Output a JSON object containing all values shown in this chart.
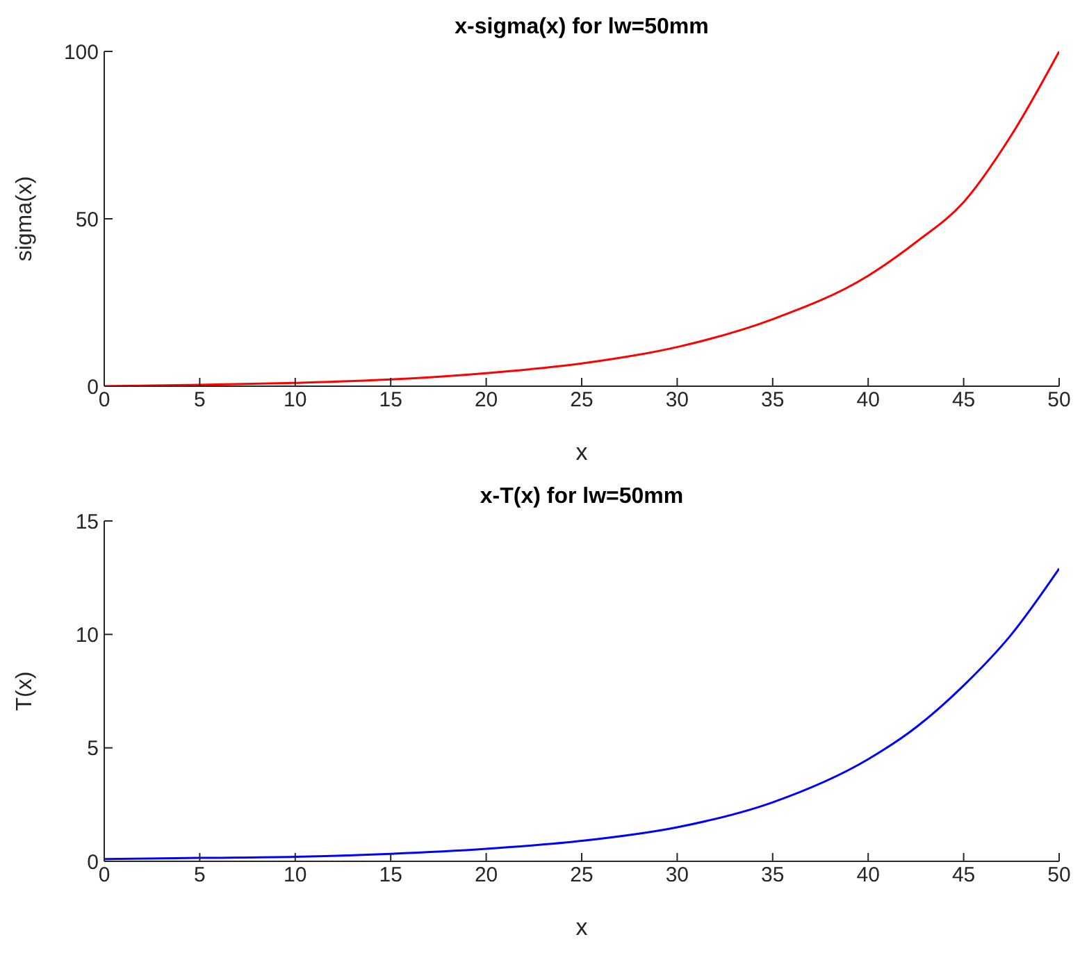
{
  "chart_data": [
    {
      "type": "line",
      "title": "x-sigma(x) for lw=50mm",
      "xlabel": "x",
      "ylabel": "sigma(x)",
      "x": [
        0,
        5,
        10,
        15,
        20,
        25,
        30,
        35,
        40,
        42.5,
        45,
        47.5,
        50
      ],
      "series": [
        {
          "color": "#ff0000",
          "values": [
            0,
            0.4,
            1,
            2,
            3.9,
            6.8,
            11.7,
            20,
            33,
            43,
            55,
            75,
            100
          ]
        }
      ],
      "xlim": [
        0,
        50
      ],
      "ylim": [
        0,
        100
      ],
      "xticks": [
        0,
        5,
        10,
        15,
        20,
        25,
        30,
        35,
        40,
        45,
        50
      ],
      "yticks": [
        0,
        50,
        100
      ]
    },
    {
      "type": "line",
      "title": "x-T(x) for lw=50mm",
      "xlabel": "x",
      "ylabel": "T(x)",
      "x": [
        0,
        5,
        10,
        15,
        20,
        25,
        30,
        35,
        40,
        42.5,
        45,
        47.5,
        50
      ],
      "series": [
        {
          "color": "#0000ff",
          "values": [
            0.1,
            0.15,
            0.2,
            0.33,
            0.55,
            0.9,
            1.5,
            2.6,
            4.5,
            5.9,
            7.75,
            10,
            12.9
          ]
        }
      ],
      "xlim": [
        0,
        50
      ],
      "ylim": [
        0,
        15
      ],
      "xticks": [
        0,
        5,
        10,
        15,
        20,
        25,
        30,
        35,
        40,
        45,
        50
      ],
      "yticks": [
        0,
        5,
        10,
        15
      ]
    }
  ]
}
